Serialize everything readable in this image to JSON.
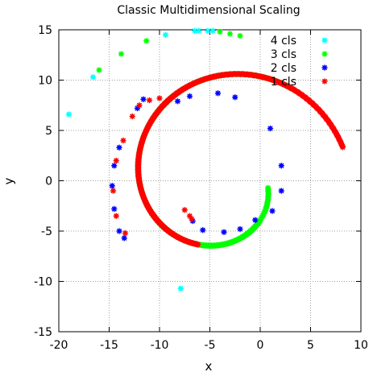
{
  "chart_data": {
    "type": "scatter",
    "title": "Classic Multidimensional Scaling",
    "xlabel": "x",
    "ylabel": "y",
    "xlim": [
      -20,
      10
    ],
    "ylim": [
      -15,
      15
    ],
    "xticks": [
      -20,
      -15,
      -10,
      -5,
      0,
      5,
      10
    ],
    "yticks": [
      -15,
      -10,
      -5,
      0,
      5,
      10,
      15
    ],
    "grid": true,
    "legend_position": "top-right",
    "series": [
      {
        "name": "4 cls",
        "color": "#00ffff",
        "marker": "star",
        "points": [
          [
            -19.0,
            6.6
          ],
          [
            -16.6,
            10.3
          ],
          [
            -9.4,
            14.5
          ],
          [
            -6.5,
            14.9
          ],
          [
            -6.1,
            14.9
          ],
          [
            -5.2,
            14.9
          ],
          [
            -4.7,
            14.9
          ],
          [
            -7.9,
            -10.7
          ]
        ]
      },
      {
        "name": "3 cls",
        "color": "#00ff00",
        "marker": "star",
        "spirals": [
          {
            "theta_start": 3.3,
            "theta_end": 4.0,
            "count": 25,
            "cx": 0,
            "cy": 0
          },
          {
            "theta_start": 4.0,
            "theta_end": 8.5,
            "count": 420,
            "cx": 0,
            "cy": 0
          }
        ],
        "points": [
          [
            -16.0,
            11.0
          ],
          [
            -13.8,
            12.6
          ],
          [
            -11.3,
            13.9
          ],
          [
            -4.0,
            14.8
          ],
          [
            -3.0,
            14.6
          ],
          [
            -2.0,
            14.4
          ]
        ]
      },
      {
        "name": "2 cls",
        "color": "#0000ff",
        "marker": "star",
        "points": [
          [
            -14.0,
            3.3
          ],
          [
            -14.5,
            1.5
          ],
          [
            -14.7,
            -0.5
          ],
          [
            -14.5,
            -2.8
          ],
          [
            -14.0,
            -5.0
          ],
          [
            -13.5,
            -5.7
          ],
          [
            -12.2,
            7.2
          ],
          [
            -11.6,
            8.1
          ],
          [
            -8.2,
            7.9
          ],
          [
            -7.0,
            8.4
          ],
          [
            -4.2,
            8.7
          ],
          [
            -2.5,
            8.3
          ],
          [
            1.0,
            5.2
          ],
          [
            2.1,
            1.5
          ],
          [
            2.1,
            -1.0
          ],
          [
            1.2,
            -3.0
          ],
          [
            -0.5,
            -3.9
          ],
          [
            -2.0,
            -4.8
          ],
          [
            -3.6,
            -5.1
          ],
          [
            -5.7,
            -4.9
          ],
          [
            -6.7,
            -4.0
          ]
        ]
      },
      {
        "name": "1 cls",
        "color": "#ff0000",
        "marker": "star",
        "spiral": {
          "theta_start": 5.1,
          "theta_end": 9.15,
          "count": 380,
          "cx": 0,
          "cy": 0
        },
        "points": [
          [
            -13.6,
            4.0
          ],
          [
            -14.3,
            2.0
          ],
          [
            -14.6,
            -1.0
          ],
          [
            -14.3,
            -3.5
          ],
          [
            -13.4,
            -5.2
          ],
          [
            -12.7,
            6.4
          ],
          [
            -12.0,
            7.5
          ],
          [
            -11.0,
            8.0
          ],
          [
            -10.0,
            8.2
          ],
          [
            -7.5,
            -2.9
          ],
          [
            -7.0,
            -3.5
          ],
          [
            -6.8,
            -3.8
          ]
        ]
      }
    ]
  }
}
